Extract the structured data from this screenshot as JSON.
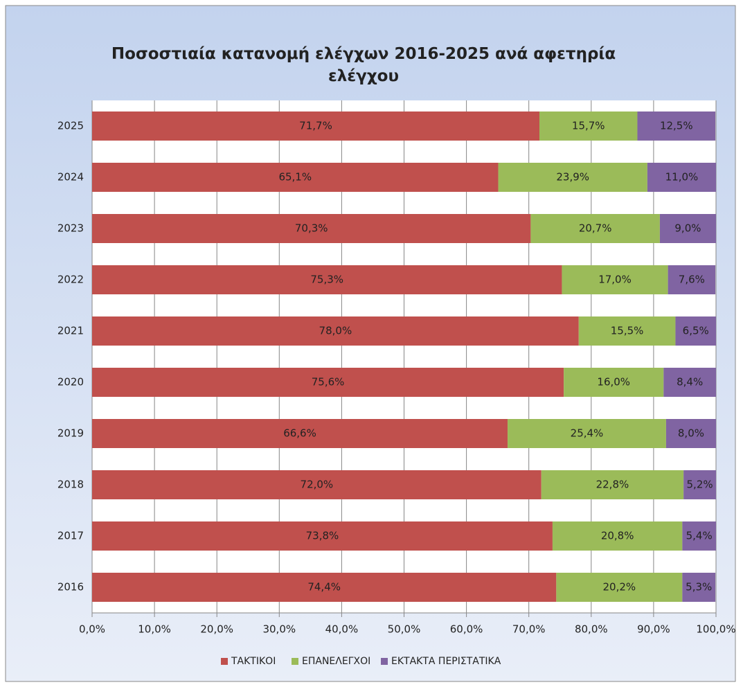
{
  "chart_data": {
    "type": "bar",
    "orientation": "horizontal",
    "stacked": true,
    "title": "Ποσοστιαία κατανομή ελέγχων  2016-2025  ανά αφετηρία ελέγχου",
    "categories": [
      "2025",
      "2024",
      "2023",
      "2022",
      "2021",
      "2020",
      "2019",
      "2018",
      "2017",
      "2016"
    ],
    "series": [
      {
        "name": "ΤΑΚΤΙΚΟΙ",
        "color": "#c0504d",
        "values": [
          71.7,
          65.1,
          70.3,
          75.3,
          78.0,
          75.6,
          66.6,
          72.0,
          73.8,
          74.4
        ],
        "value_labels": [
          "71,7%",
          "65,1%",
          "70,3%",
          "75,3%",
          "78,0%",
          "75,6%",
          "66,6%",
          "72,0%",
          "73,8%",
          "74,4%"
        ]
      },
      {
        "name": "ΕΠΑΝΕΛΕΓΧΟΙ",
        "color": "#9bbb59",
        "values": [
          15.7,
          23.9,
          20.7,
          17.0,
          15.5,
          16.0,
          25.4,
          22.8,
          20.8,
          20.2
        ],
        "value_labels": [
          "15,7%",
          "23,9%",
          "20,7%",
          "17,0%",
          "15,5%",
          "16,0%",
          "25,4%",
          "22,8%",
          "20,8%",
          "20,2%"
        ]
      },
      {
        "name": "ΕΚΤΑΚΤΑ ΠΕΡΙΣΤΑΤΙΚΑ",
        "color": "#8064a2",
        "values": [
          12.5,
          11.0,
          9.0,
          7.6,
          6.5,
          8.4,
          8.0,
          5.2,
          5.4,
          5.3
        ],
        "value_labels": [
          "12,5%",
          "11,0%",
          "9,0%",
          "7,6%",
          "6,5%",
          "8,4%",
          "8,0%",
          "5,2%",
          "5,4%",
          "5,3%"
        ]
      }
    ],
    "xlim": [
      0,
      100
    ],
    "xticks": [
      {
        "value": 0,
        "label": "0,0%"
      },
      {
        "value": 10,
        "label": "10,0%"
      },
      {
        "value": 20,
        "label": "20,0%"
      },
      {
        "value": 30,
        "label": "30,0%"
      },
      {
        "value": 40,
        "label": "40,0%"
      },
      {
        "value": 50,
        "label": "50,0%"
      },
      {
        "value": 60,
        "label": "60,0%"
      },
      {
        "value": 70,
        "label": "70,0%"
      },
      {
        "value": 80,
        "label": "80,0%"
      },
      {
        "value": 90,
        "label": "90,0%"
      },
      {
        "value": 100,
        "label": "100,0%"
      }
    ],
    "grid": true,
    "legend": "bottom"
  }
}
